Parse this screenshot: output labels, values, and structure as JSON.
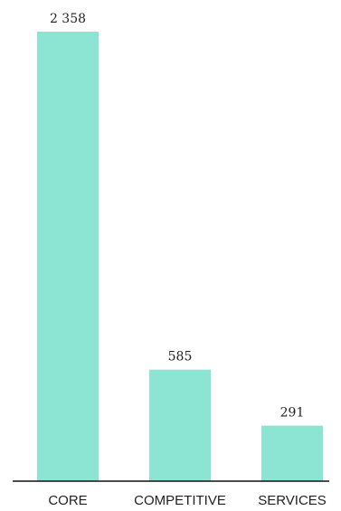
{
  "chart_data": {
    "type": "bar",
    "categories": [
      "CORE",
      "COMPETITIVE",
      "SERVICES"
    ],
    "values": [
      2358,
      585,
      291
    ],
    "value_labels": [
      "2 358",
      "585",
      "291"
    ],
    "title": "",
    "xlabel": "",
    "ylabel": "",
    "ylim": [
      0,
      2358
    ],
    "grid": false,
    "legend": "none",
    "bar_color": "#8ce5d2",
    "axis_color": "#111111",
    "text_color": "#222222"
  }
}
